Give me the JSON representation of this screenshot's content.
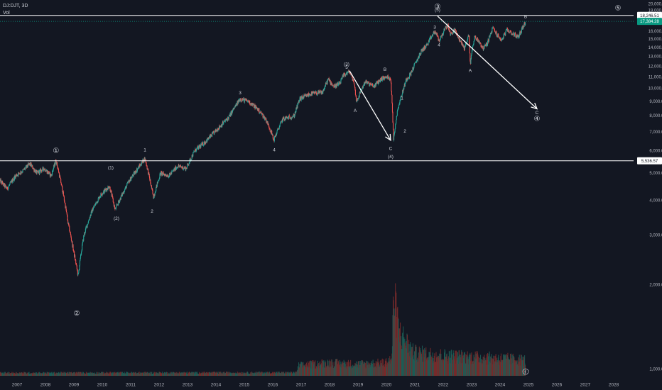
{
  "header": {
    "symbol": "DJ:DJT, 3D",
    "volume_label": "Vol"
  },
  "colors": {
    "background": "#131722",
    "up": "#26a69a",
    "down": "#ef5350",
    "vol_up": "#1c5f58",
    "vol_down": "#7a2c2b",
    "text": "#d1d4dc",
    "axis_text": "#b2b5be",
    "line": "#ffffff",
    "price_tag": "#089981"
  },
  "chart_data": {
    "type": "candlestick",
    "title": "",
    "xlabel": "",
    "ylabel": "",
    "x_ticks": [
      "2007",
      "2008",
      "2009",
      "2010",
      "2011",
      "2012",
      "2013",
      "2014",
      "2015",
      "2016",
      "2017",
      "2018",
      "2019",
      "2020",
      "2021",
      "2022",
      "2023",
      "2024",
      "2025",
      "2026",
      "2027",
      "2028"
    ],
    "y_ticks": [
      1000,
      2000,
      3000,
      4000,
      5000,
      6000,
      7000,
      8000,
      9000,
      10000,
      11000,
      12000,
      13000,
      14000,
      15000,
      16000,
      17000,
      18000,
      19000,
      20000
    ],
    "y_tick_labels": [
      "1,000.00",
      "2,000.00",
      "3,000.00",
      "4,000.00",
      "5,000.00",
      "6,000.00",
      "7,000.00",
      "8,000.00",
      "9,000.00",
      "10,000.00",
      "11,000.00",
      "12,000.00",
      "13,000.00",
      "14,000.00",
      "15,000.00",
      "16,000.00",
      "17,000.00",
      "18,000.00",
      "19,000.00",
      "20,000.00"
    ],
    "ylim": [
      600,
      20000
    ],
    "xlim": [
      2006.45,
      2028.75
    ],
    "price_path": [
      [
        2006.45,
        4700
      ],
      [
        2006.7,
        4400
      ],
      [
        2007.0,
        4900
      ],
      [
        2007.25,
        5100
      ],
      [
        2007.5,
        5400
      ],
      [
        2007.75,
        5000
      ],
      [
        2008.0,
        5200
      ],
      [
        2008.25,
        4900
      ],
      [
        2008.42,
        5550
      ],
      [
        2008.6,
        4600
      ],
      [
        2008.85,
        3300
      ],
      [
        2009.05,
        2600
      ],
      [
        2009.2,
        2150
      ],
      [
        2009.4,
        3000
      ],
      [
        2009.7,
        3700
      ],
      [
        2010.0,
        4200
      ],
      [
        2010.3,
        4500
      ],
      [
        2010.5,
        3700
      ],
      [
        2010.75,
        4200
      ],
      [
        2011.0,
        4700
      ],
      [
        2011.3,
        5200
      ],
      [
        2011.55,
        5650
      ],
      [
        2011.75,
        4600
      ],
      [
        2011.85,
        4100
      ],
      [
        2012.1,
        5000
      ],
      [
        2012.4,
        4900
      ],
      [
        2012.7,
        5300
      ],
      [
        2013.0,
        5200
      ],
      [
        2013.3,
        6000
      ],
      [
        2013.7,
        6500
      ],
      [
        2014.0,
        7000
      ],
      [
        2014.5,
        7900
      ],
      [
        2014.9,
        9200
      ],
      [
        2015.2,
        9000
      ],
      [
        2015.5,
        8500
      ],
      [
        2015.8,
        7800
      ],
      [
        2016.0,
        7000
      ],
      [
        2016.08,
        6550
      ],
      [
        2016.4,
        7800
      ],
      [
        2016.8,
        8000
      ],
      [
        2017.0,
        9200
      ],
      [
        2017.4,
        9600
      ],
      [
        2017.8,
        9700
      ],
      [
        2018.0,
        10800
      ],
      [
        2018.2,
        10200
      ],
      [
        2018.4,
        10400
      ],
      [
        2018.55,
        11200
      ],
      [
        2018.75,
        11500
      ],
      [
        2018.9,
        10600
      ],
      [
        2019.0,
        9000
      ],
      [
        2019.3,
        10600
      ],
      [
        2019.6,
        10200
      ],
      [
        2019.9,
        10900
      ],
      [
        2020.1,
        11000
      ],
      [
        2020.2,
        10900
      ],
      [
        2020.3,
        6600
      ],
      [
        2020.45,
        8500
      ],
      [
        2020.6,
        9600
      ],
      [
        2020.75,
        10800
      ],
      [
        2020.9,
        11300
      ],
      [
        2021.1,
        12500
      ],
      [
        2021.3,
        13700
      ],
      [
        2021.5,
        14400
      ],
      [
        2021.6,
        15100
      ],
      [
        2021.75,
        16000
      ],
      [
        2021.83,
        15500
      ],
      [
        2021.9,
        14800
      ],
      [
        2022.0,
        15500
      ],
      [
        2022.2,
        16900
      ],
      [
        2022.3,
        15600
      ],
      [
        2022.45,
        16200
      ],
      [
        2022.6,
        15100
      ],
      [
        2022.8,
        13900
      ],
      [
        2022.95,
        15600
      ],
      [
        2023.0,
        12300
      ],
      [
        2023.15,
        15300
      ],
      [
        2023.3,
        14800
      ],
      [
        2023.45,
        13900
      ],
      [
        2023.6,
        14500
      ],
      [
        2023.8,
        16500
      ],
      [
        2023.95,
        15500
      ],
      [
        2024.1,
        14900
      ],
      [
        2024.3,
        16200
      ],
      [
        2024.5,
        15700
      ],
      [
        2024.7,
        15300
      ],
      [
        2024.85,
        16600
      ],
      [
        2024.92,
        17100
      ],
      [
        2024.95,
        17384
      ]
    ],
    "volume_ylim": [
      0,
      6000
    ],
    "volume_profile": [
      [
        2006.45,
        200
      ],
      [
        2016.9,
        220
      ],
      [
        2016.95,
        700
      ],
      [
        2018.0,
        900
      ],
      [
        2019.0,
        800
      ],
      [
        2020.0,
        900
      ],
      [
        2020.25,
        1200
      ],
      [
        2020.3,
        5600
      ],
      [
        2020.5,
        3000
      ],
      [
        2020.8,
        2200
      ],
      [
        2021.0,
        1600
      ],
      [
        2022.0,
        1400
      ],
      [
        2023.0,
        1300
      ],
      [
        2024.0,
        1200
      ],
      [
        2024.92,
        1100
      ]
    ],
    "horizontal_lines": [
      {
        "value": 18246.51,
        "label": "18,246.51"
      },
      {
        "value": 5536.57,
        "label": "5,536.57"
      }
    ],
    "last_price": {
      "value": 17384,
      "label": "17,384.28"
    },
    "arrows": [
      {
        "x1": 2018.75,
        "y1": 11600,
        "x2": 2020.2,
        "y2": 6550
      },
      {
        "x1": 2021.85,
        "y1": 18150,
        "x2": 2025.35,
        "y2": 8480
      }
    ],
    "annotations": [
      {
        "text": "①",
        "x": 2008.42,
        "y": 6000,
        "kind": "circled"
      },
      {
        "text": "②",
        "x": 2009.15,
        "y": 1580,
        "kind": "circled"
      },
      {
        "text": "(1)",
        "x": 2010.35,
        "y": 5220,
        "kind": "plain"
      },
      {
        "text": "(2)",
        "x": 2010.55,
        "y": 3450,
        "kind": "plain"
      },
      {
        "text": "1",
        "x": 2011.55,
        "y": 6050,
        "kind": "plain"
      },
      {
        "text": "2",
        "x": 2011.8,
        "y": 3650,
        "kind": "plain"
      },
      {
        "text": "3",
        "x": 2014.9,
        "y": 9650,
        "kind": "plain"
      },
      {
        "text": "4",
        "x": 2016.1,
        "y": 6050,
        "kind": "plain"
      },
      {
        "text": "(3)",
        "x": 2018.65,
        "y": 12200,
        "kind": "plain"
      },
      {
        "text": "5",
        "x": 2018.65,
        "y": 11900,
        "kind": "plain"
      },
      {
        "text": "A",
        "x": 2018.95,
        "y": 8350,
        "kind": "plain"
      },
      {
        "text": "B",
        "x": 2020.0,
        "y": 11700,
        "kind": "plain"
      },
      {
        "text": "1",
        "x": 2020.6,
        "y": 9250,
        "kind": "plain"
      },
      {
        "text": "2",
        "x": 2020.7,
        "y": 7050,
        "kind": "plain"
      },
      {
        "text": "C",
        "x": 2020.2,
        "y": 6120,
        "kind": "plain"
      },
      {
        "text": "(4)",
        "x": 2020.2,
        "y": 5720,
        "kind": "plain"
      },
      {
        "text": "3",
        "x": 2021.75,
        "y": 16550,
        "kind": "plain"
      },
      {
        "text": "4",
        "x": 2021.9,
        "y": 14300,
        "kind": "plain"
      },
      {
        "text": "③",
        "x": 2021.85,
        "y": 19550,
        "kind": "circled"
      },
      {
        "text": "(5)",
        "x": 2021.85,
        "y": 19050,
        "kind": "plain"
      },
      {
        "text": "A",
        "x": 2023.0,
        "y": 11600,
        "kind": "plain"
      },
      {
        "text": "B",
        "x": 2024.95,
        "y": 18050,
        "kind": "plain"
      },
      {
        "text": "C",
        "x": 2025.35,
        "y": 8200,
        "kind": "plain"
      },
      {
        "text": "④",
        "x": 2025.35,
        "y": 7800,
        "kind": "circled"
      },
      {
        "text": "⑤",
        "x": 2028.2,
        "y": 19350,
        "kind": "circled"
      }
    ],
    "grid": false
  }
}
